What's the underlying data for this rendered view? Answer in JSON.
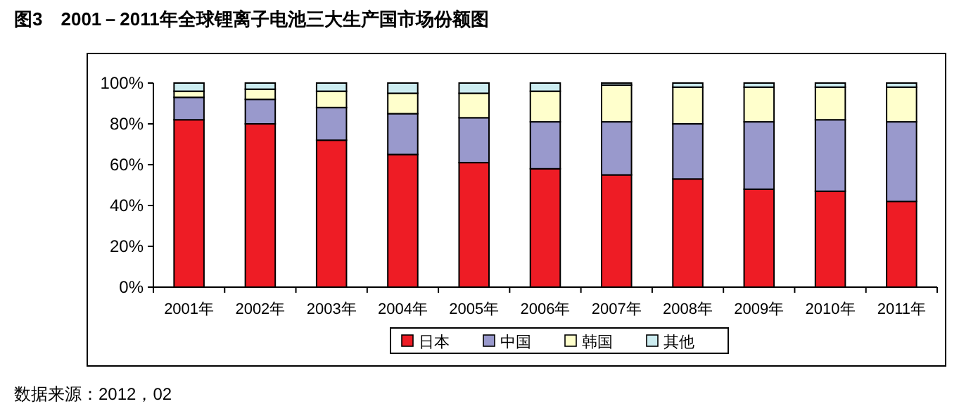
{
  "chart_data": {
    "type": "bar",
    "stacked": true,
    "title": "图3　2001－2011年全球锂离子电池三大生产国市场份额图",
    "categories": [
      "2001年",
      "2002年",
      "2003年",
      "2004年",
      "2005年",
      "2006年",
      "2007年",
      "2008年",
      "2009年",
      "2010年",
      "2011年"
    ],
    "series": [
      {
        "name": "日本",
        "color": "#ee1c25",
        "values": [
          82,
          80,
          72,
          65,
          61,
          58,
          55,
          53,
          48,
          47,
          42
        ]
      },
      {
        "name": "中国",
        "color": "#9999cc",
        "values": [
          11,
          12,
          16,
          20,
          22,
          23,
          26,
          27,
          33,
          35,
          39
        ]
      },
      {
        "name": "韩国",
        "color": "#ffffcc",
        "values": [
          3,
          5,
          8,
          10,
          12,
          15,
          18,
          18,
          17,
          16,
          17
        ]
      },
      {
        "name": "其他",
        "color": "#ccecf0",
        "values": [
          4,
          3,
          4,
          5,
          5,
          4,
          1,
          2,
          2,
          2,
          2
        ]
      }
    ],
    "ylim": [
      0,
      100
    ],
    "yticks": [
      {
        "value": 0,
        "label": "0%"
      },
      {
        "value": 20,
        "label": "20%"
      },
      {
        "value": 40,
        "label": "40%"
      },
      {
        "value": 60,
        "label": "60%"
      },
      {
        "value": 80,
        "label": "80%"
      },
      {
        "value": 100,
        "label": "100%"
      }
    ],
    "grid": false,
    "legend": "bottom",
    "annotations": [
      "数据来源：2012，02"
    ]
  }
}
